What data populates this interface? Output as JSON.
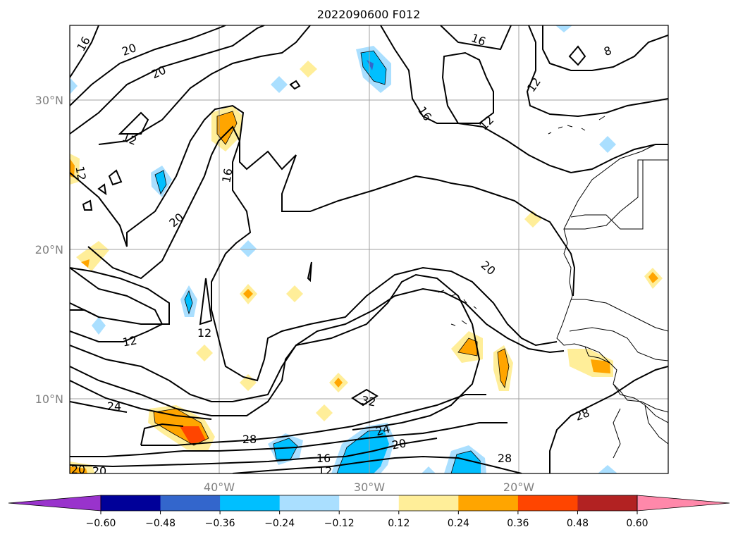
{
  "title": "2022090600 F012",
  "map": {
    "lat_labels": [
      "30°N",
      "20°N",
      "10°N"
    ],
    "lon_labels": [
      "40°W",
      "30°W",
      "20°W"
    ],
    "contour_labels": [
      "16",
      "20",
      "20",
      "12",
      "12",
      "16",
      "20",
      "12",
      "12",
      "24",
      "28",
      "20",
      "16",
      "12",
      "20",
      "32",
      "24",
      "20",
      "16",
      "12",
      "16",
      "12",
      "8",
      "20",
      "28",
      "28"
    ]
  },
  "colorbar": {
    "ticks": [
      "−0.60",
      "−0.48",
      "−0.36",
      "−0.24",
      "−0.12",
      "0.12",
      "0.24",
      "0.36",
      "0.48",
      "0.60"
    ],
    "colors": [
      "#9933cc",
      "#000099",
      "#3366cc",
      "#00bfff",
      "#aadfff",
      "#ffffff",
      "#ffee99",
      "#ffa500",
      "#ff4500",
      "#b22222",
      "#ff88aa"
    ],
    "extend": "both"
  }
}
